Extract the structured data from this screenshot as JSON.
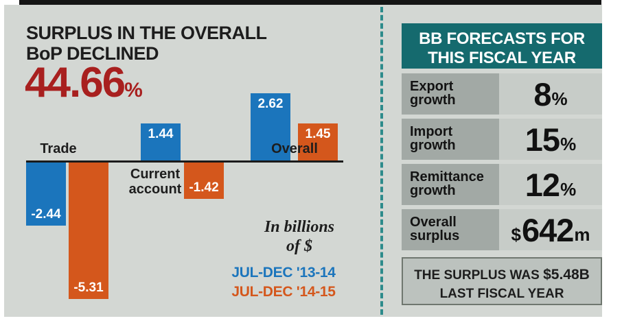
{
  "colors": {
    "background": "#d3d7d3",
    "series_blue": "#1b75bc",
    "series_orange": "#d4571c",
    "headline_red": "#a8201f",
    "panel_teal": "#156a6e",
    "axis_black": "#1a1a1a"
  },
  "headline": {
    "title_line1": "SURPLUS IN THE OVERALL",
    "title_line2": "BoP DECLINED",
    "big_number": "44.66",
    "big_number_suffix": "%"
  },
  "chart_data": {
    "type": "bar",
    "title": "Surplus in the overall BoP declined 44.66%",
    "unit_note": "In billions of $",
    "categories": [
      "Trade",
      "Current account",
      "Overall"
    ],
    "series": [
      {
        "name": "JUL-DEC '13-14",
        "color": "#1b75bc",
        "values": [
          -2.44,
          1.44,
          2.62
        ]
      },
      {
        "name": "JUL-DEC '14-15",
        "color": "#d4571c",
        "values": [
          -5.31,
          -1.42,
          1.45
        ]
      }
    ],
    "ylim": [
      -5.31,
      2.62
    ],
    "grid": false,
    "legend_position": "bottom-right"
  },
  "unit_note": {
    "line1": "In billions",
    "line2": "of $"
  },
  "forecast_panel": {
    "header_line1": "BB FORECASTS FOR",
    "header_line2": "THIS FISCAL YEAR",
    "rows": [
      {
        "label": "Export growth",
        "value": "8",
        "suffix": "%"
      },
      {
        "label": "Import growth",
        "value": "15",
        "suffix": "%"
      },
      {
        "label": "Remittance growth",
        "value": "12",
        "suffix": "%"
      },
      {
        "label": "Overall surplus",
        "prefix": "$",
        "value": "642",
        "suffix": "m"
      }
    ],
    "footer_prefix": "THE SURPLUS WAS",
    "footer_value": "$5.48B",
    "footer_line2": "LAST FISCAL  YEAR"
  }
}
